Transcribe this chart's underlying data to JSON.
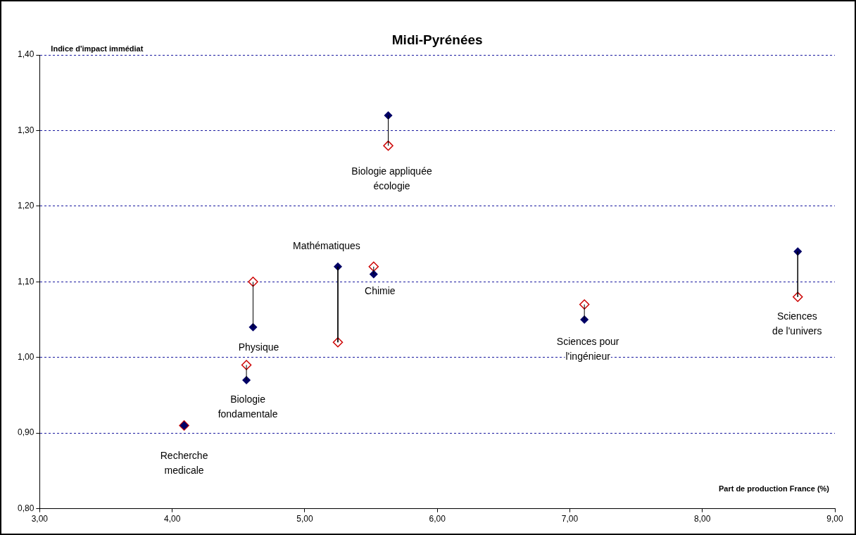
{
  "chart_data": {
    "type": "scatter",
    "title": "Midi-Pyrénées",
    "xlabel": "Part de production France (%)",
    "ylabel": "Indice d'impact immédiat",
    "xlim": [
      3,
      9
    ],
    "xticks": [
      {
        "value": 3,
        "label": "3,00"
      },
      {
        "value": 4,
        "label": "4,00"
      },
      {
        "value": 5,
        "label": "5,00"
      },
      {
        "value": 6,
        "label": "6,00"
      },
      {
        "value": 7,
        "label": "7,00"
      },
      {
        "value": 8,
        "label": "8,00"
      },
      {
        "value": 9,
        "label": "9,00"
      }
    ],
    "ylim": [
      0.8,
      1.4
    ],
    "yticks": [
      {
        "value": 0.8,
        "label": "0,80"
      },
      {
        "value": 0.9,
        "label": "0,90"
      },
      {
        "value": 1.0,
        "label": "1,00"
      },
      {
        "value": 1.1,
        "label": "1,10"
      },
      {
        "value": 1.2,
        "label": "1,20"
      },
      {
        "value": 1.3,
        "label": "1,30"
      },
      {
        "value": 1.4,
        "label": "1,40"
      }
    ],
    "grid": "y",
    "legend": false,
    "marker": "diamond",
    "line_style": "solid",
    "series": [
      {
        "type": "line",
        "marker": "none",
        "color": "#000000",
        "x": [
          4.56,
          4.56
        ],
        "values": [
          0.97,
          0.99
        ]
      },
      {
        "type": "line",
        "marker": "none",
        "color": "#000000",
        "x": [
          4.61,
          4.61
        ],
        "values": [
          1.04,
          1.1
        ]
      },
      {
        "type": "line",
        "marker": "none",
        "color": "#000000",
        "x": [
          5.25,
          5.25
        ],
        "values": [
          1.12,
          1.02
        ]
      },
      {
        "type": "line",
        "marker": "none",
        "color": "#000000",
        "x": [
          5.52,
          5.52
        ],
        "values": [
          1.11,
          1.12
        ]
      },
      {
        "type": "line",
        "marker": "none",
        "color": "#000000",
        "x": [
          5.63,
          5.63
        ],
        "values": [
          1.32,
          1.28
        ]
      },
      {
        "type": "line",
        "marker": "none",
        "color": "#000000",
        "x": [
          7.11,
          7.11
        ],
        "values": [
          1.05,
          1.07
        ]
      },
      {
        "type": "line",
        "marker": "none",
        "color": "#000000",
        "x": [
          8.72,
          8.72
        ],
        "values": [
          1.14,
          1.08
        ]
      },
      {
        "color": "#cc0000",
        "x": [
          4.09,
          4.56,
          4.61,
          5.25,
          5.52,
          5.63,
          7.11,
          8.72
        ],
        "values": [
          0.91,
          0.99,
          1.1,
          1.02,
          1.12,
          1.28,
          1.07,
          1.08
        ]
      },
      {
        "color": "#000066",
        "x": [
          4.09,
          4.56,
          4.61,
          5.25,
          5.52,
          5.63,
          7.11,
          8.72
        ],
        "values": [
          0.91,
          0.97,
          1.04,
          1.12,
          1.11,
          1.32,
          1.05,
          1.14
        ]
      }
    ],
    "annotations": [
      {
        "text": "Recherche\nmedicale",
        "x": 4.09,
        "y": 0.91
      },
      {
        "text": "Biologie\nfondamentale",
        "x": 4.56,
        "y": 0.97
      },
      {
        "text": "Physique",
        "x": 4.61,
        "y": 1.04
      },
      {
        "text": "Mathématiques",
        "x": 5.25,
        "y": 1.12
      },
      {
        "text": "Chimie",
        "x": 5.52,
        "y": 1.11
      },
      {
        "text": "Biologie appliquée\nécologie",
        "x": 5.63,
        "y": 1.28
      },
      {
        "text": "Sciences pour\nl'ingénieur",
        "x": 7.11,
        "y": 1.05
      },
      {
        "text": "Sciences\nde l'univers",
        "x": 8.72,
        "y": 1.08
      }
    ]
  }
}
